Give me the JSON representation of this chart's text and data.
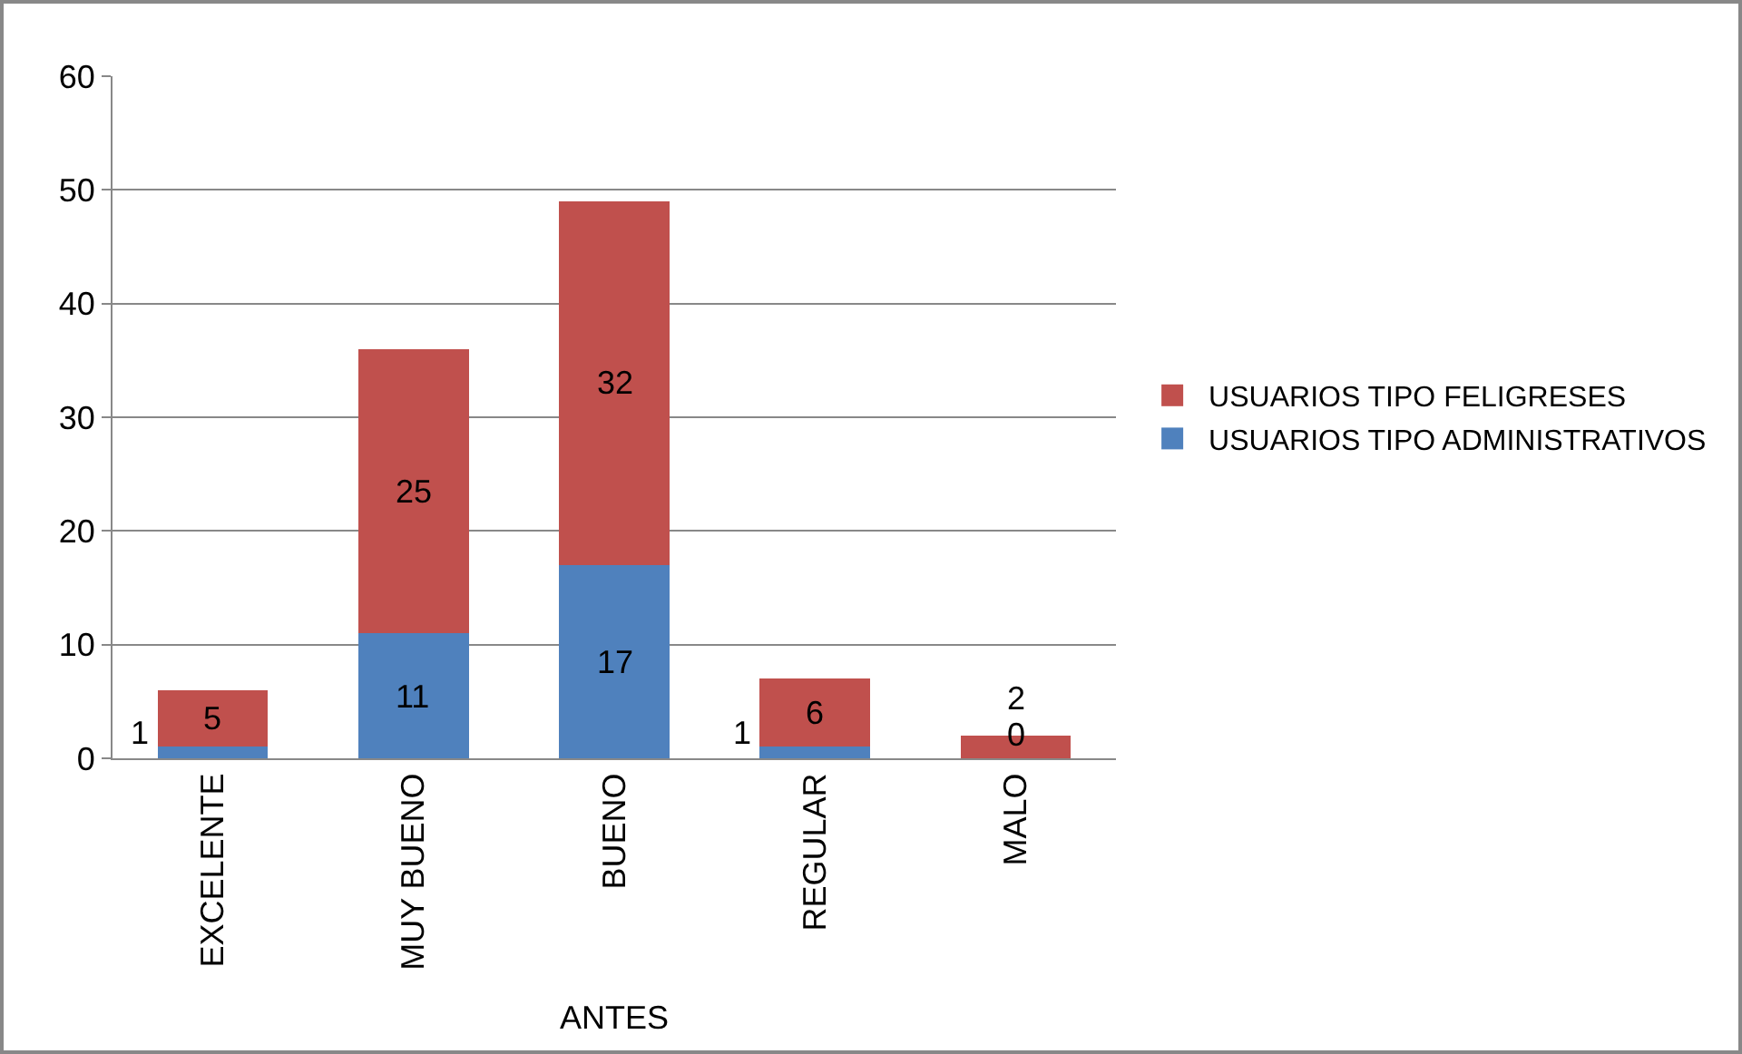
{
  "chart_data": {
    "type": "bar",
    "stacked": true,
    "xlabel": "ANTES",
    "categories": [
      "EXCELENTE",
      "MUY BUENO",
      "BUENO",
      "REGULAR",
      "MALO"
    ],
    "series": [
      {
        "name": "USUARIOS TIPO ADMINISTRATIVOS",
        "color": "#4f81bd",
        "values": [
          1,
          11,
          17,
          1,
          0
        ]
      },
      {
        "name": "USUARIOS TIPO FELIGRESES",
        "color": "#c0504d",
        "values": [
          5,
          25,
          32,
          6,
          2
        ]
      }
    ],
    "ylim": [
      0,
      60
    ],
    "yticks": [
      0,
      10,
      20,
      30,
      40,
      50,
      60
    ],
    "grid": "y",
    "legend": "right",
    "data_labels": true
  }
}
